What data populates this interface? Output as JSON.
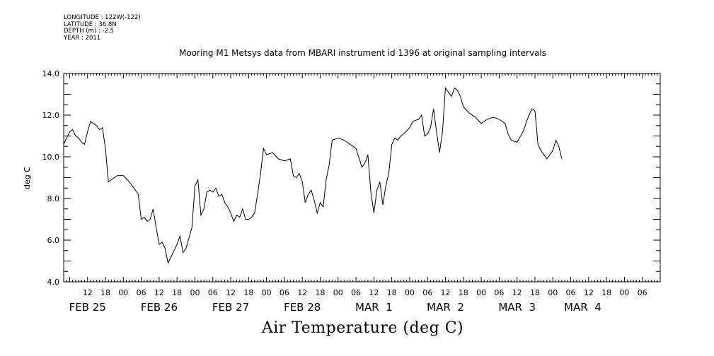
{
  "meta": {
    "longitude": "LONGITUDE : 122W(-122)",
    "latitude": "LATITUDE : 36.8N",
    "depth": "DEPTH (m) : -2.5",
    "year": "YEAR : 2011"
  },
  "chart_data": {
    "type": "line",
    "title": "Mooring M1 Metsys data from MBARI instrument id 1396 at original sampling intervals",
    "caption": "Air Temperature (deg C)",
    "ylabel": "deg C",
    "xlabel": "",
    "ylim": [
      4.0,
      14.0
    ],
    "xlim_hours_from_feb25_00": [
      4,
      204
    ],
    "y_ticks": [
      "4.0",
      "6.0",
      "8.0",
      "10.0",
      "12.0",
      "14.0"
    ],
    "hour_ticks": [
      "12",
      "18",
      "00",
      "06",
      "12",
      "18",
      "00",
      "06",
      "12",
      "18",
      "00",
      "06",
      "12",
      "18",
      "00",
      "06",
      "12",
      "18",
      "00",
      "06",
      "12",
      "18",
      "00",
      "06",
      "12",
      "18",
      "00",
      "06",
      "12",
      "18",
      "00",
      "06"
    ],
    "day_labels": [
      "FEB 25",
      "FEB 26",
      "FEB 27",
      "FEB 28",
      "MAR  1",
      "MAR  2",
      "MAR  3",
      "MAR  4"
    ],
    "grid": false,
    "series": [
      {
        "points": [
          [
            "Feb 25 04:00",
            10.6
          ],
          [
            "Feb 25 06:00",
            11.2
          ],
          [
            "Feb 25 07:00",
            11.3
          ],
          [
            "Feb 25 08:00",
            11.0
          ],
          [
            "Feb 25 09:00",
            10.9
          ],
          [
            "Feb 25 10:00",
            10.7
          ],
          [
            "Feb 25 11:00",
            10.6
          ],
          [
            "Feb 25 12:00",
            11.2
          ],
          [
            "Feb 25 13:00",
            11.7
          ],
          [
            "Feb 25 14:00",
            11.6
          ],
          [
            "Feb 25 15:00",
            11.5
          ],
          [
            "Feb 25 16:00",
            11.3
          ],
          [
            "Feb 25 17:00",
            11.4
          ],
          [
            "Feb 25 18:00",
            10.4
          ],
          [
            "Feb 25 19:00",
            8.8
          ],
          [
            "Feb 25 20:00",
            8.9
          ],
          [
            "Feb 25 22:00",
            9.1
          ],
          [
            "Feb 26 00:00",
            9.1
          ],
          [
            "Feb 26 02:00",
            8.8
          ],
          [
            "Feb 26 04:00",
            8.4
          ],
          [
            "Feb 26 05:00",
            8.2
          ],
          [
            "Feb 26 06:00",
            7.0
          ],
          [
            "Feb 26 07:00",
            7.1
          ],
          [
            "Feb 26 08:00",
            6.9
          ],
          [
            "Feb 26 09:00",
            7.0
          ],
          [
            "Feb 26 10:00",
            7.5
          ],
          [
            "Feb 26 11:00",
            6.6
          ],
          [
            "Feb 26 12:00",
            5.8
          ],
          [
            "Feb 26 13:00",
            5.9
          ],
          [
            "Feb 26 14:00",
            5.6
          ],
          [
            "Feb 26 15:00",
            4.9
          ],
          [
            "Feb 26 16:00",
            5.2
          ],
          [
            "Feb 26 17:00",
            5.5
          ],
          [
            "Feb 26 18:00",
            5.8
          ],
          [
            "Feb 26 19:00",
            6.2
          ],
          [
            "Feb 26 20:00",
            5.4
          ],
          [
            "Feb 26 21:00",
            5.6
          ],
          [
            "Feb 26 22:00",
            6.1
          ],
          [
            "Feb 26 23:00",
            6.6
          ],
          [
            "Feb 27 00:00",
            8.6
          ],
          [
            "Feb 27 01:00",
            8.9
          ],
          [
            "Feb 27 02:00",
            7.2
          ],
          [
            "Feb 27 03:00",
            7.5
          ],
          [
            "Feb 27 04:00",
            8.3
          ],
          [
            "Feb 27 05:00",
            8.4
          ],
          [
            "Feb 27 06:00",
            8.3
          ],
          [
            "Feb 27 07:00",
            8.5
          ],
          [
            "Feb 27 08:00",
            8.1
          ],
          [
            "Feb 27 09:00",
            8.2
          ],
          [
            "Feb 27 10:00",
            7.8
          ],
          [
            "Feb 27 11:00",
            7.6
          ],
          [
            "Feb 27 12:00",
            7.3
          ],
          [
            "Feb 27 13:00",
            6.9
          ],
          [
            "Feb 27 14:00",
            7.2
          ],
          [
            "Feb 27 15:00",
            7.1
          ],
          [
            "Feb 27 16:00",
            7.5
          ],
          [
            "Feb 27 17:00",
            7.0
          ],
          [
            "Feb 27 18:00",
            7.0
          ],
          [
            "Feb 27 19:00",
            7.1
          ],
          [
            "Feb 27 20:00",
            7.3
          ],
          [
            "Feb 27 21:00",
            8.2
          ],
          [
            "Feb 27 22:00",
            9.2
          ],
          [
            "Feb 27 23:00",
            10.4
          ],
          [
            "Feb 28 00:00",
            10.1
          ],
          [
            "Feb 28 02:00",
            10.2
          ],
          [
            "Feb 28 04:00",
            9.9
          ],
          [
            "Feb 28 06:00",
            9.8
          ],
          [
            "Feb 28 08:00",
            9.9
          ],
          [
            "Feb 28 09:00",
            9.1
          ],
          [
            "Feb 28 10:00",
            9.0
          ],
          [
            "Feb 28 11:00",
            9.2
          ],
          [
            "Feb 28 12:00",
            8.8
          ],
          [
            "Feb 28 13:00",
            7.8
          ],
          [
            "Feb 28 14:00",
            8.2
          ],
          [
            "Feb 28 15:00",
            8.4
          ],
          [
            "Feb 28 16:00",
            7.9
          ],
          [
            "Feb 28 17:00",
            7.3
          ],
          [
            "Feb 28 18:00",
            7.8
          ],
          [
            "Feb 28 19:00",
            7.6
          ],
          [
            "Feb 28 20:00",
            8.9
          ],
          [
            "Feb 28 21:00",
            9.6
          ],
          [
            "Feb 28 22:00",
            10.8
          ],
          [
            "Mar 1 00:00",
            10.9
          ],
          [
            "Mar 1 02:00",
            10.8
          ],
          [
            "Mar 1 04:00",
            10.6
          ],
          [
            "Mar 1 06:00",
            10.4
          ],
          [
            "Mar 1 08:00",
            9.5
          ],
          [
            "Mar 1 09:00",
            9.7
          ],
          [
            "Mar 1 10:00",
            10.1
          ],
          [
            "Mar 1 11:00",
            8.3
          ],
          [
            "Mar 1 12:00",
            7.3
          ],
          [
            "Mar 1 13:00",
            8.4
          ],
          [
            "Mar 1 14:00",
            8.8
          ],
          [
            "Mar 1 15:00",
            7.7
          ],
          [
            "Mar 1 16:00",
            8.6
          ],
          [
            "Mar 1 17:00",
            9.2
          ],
          [
            "Mar 1 18:00",
            10.6
          ],
          [
            "Mar 1 19:00",
            10.9
          ],
          [
            "Mar 1 20:00",
            10.8
          ],
          [
            "Mar 1 21:00",
            11.0
          ],
          [
            "Mar 1 22:00",
            11.1
          ],
          [
            "Mar 2 00:00",
            11.4
          ],
          [
            "Mar 2 01:00",
            11.7
          ],
          [
            "Mar 2 03:00",
            11.8
          ],
          [
            "Mar 2 04:00",
            12.0
          ],
          [
            "Mar 2 05:00",
            11.0
          ],
          [
            "Mar 2 06:00",
            11.1
          ],
          [
            "Mar 2 07:00",
            11.4
          ],
          [
            "Mar 2 08:00",
            12.3
          ],
          [
            "Mar 2 09:00",
            11.2
          ],
          [
            "Mar 2 10:00",
            10.2
          ],
          [
            "Mar 2 11:00",
            11.2
          ],
          [
            "Mar 2 12:00",
            13.3
          ],
          [
            "Mar 2 13:00",
            13.1
          ],
          [
            "Mar 2 14:00",
            12.9
          ],
          [
            "Mar 2 15:00",
            13.3
          ],
          [
            "Mar 2 16:00",
            13.2
          ],
          [
            "Mar 2 17:00",
            12.9
          ],
          [
            "Mar 2 18:00",
            12.4
          ],
          [
            "Mar 2 20:00",
            12.1
          ],
          [
            "Mar 2 22:00",
            11.9
          ],
          [
            "Mar 3 00:00",
            11.6
          ],
          [
            "Mar 3 02:00",
            11.8
          ],
          [
            "Mar 3 04:00",
            11.9
          ],
          [
            "Mar 3 06:00",
            11.8
          ],
          [
            "Mar 3 08:00",
            11.6
          ],
          [
            "Mar 3 09:00",
            11.1
          ],
          [
            "Mar 3 10:00",
            10.8
          ],
          [
            "Mar 3 12:00",
            10.7
          ],
          [
            "Mar 3 14:00",
            11.2
          ],
          [
            "Mar 3 16:00",
            12.0
          ],
          [
            "Mar 3 17:00",
            12.3
          ],
          [
            "Mar 3 18:00",
            12.2
          ],
          [
            "Mar 3 19:00",
            10.6
          ],
          [
            "Mar 3 20:00",
            10.3
          ],
          [
            "Mar 3 22:00",
            9.9
          ],
          [
            "Mar 4 00:00",
            10.3
          ],
          [
            "Mar 4 01:00",
            10.8
          ],
          [
            "Mar 4 02:00",
            10.5
          ],
          [
            "Mar 4 03:00",
            9.9
          ]
        ]
      }
    ]
  }
}
